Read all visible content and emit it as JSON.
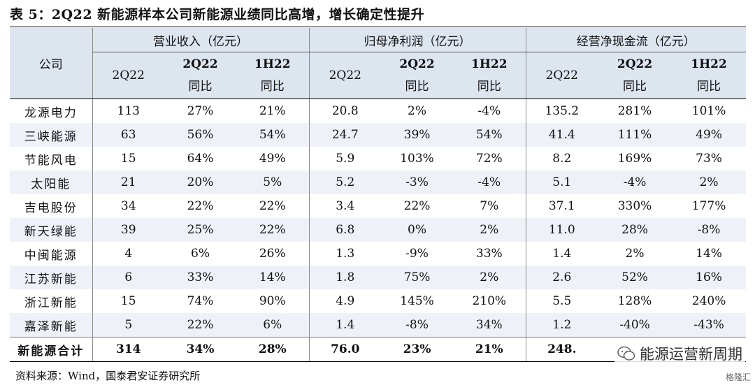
{
  "title": "表 5：2Q22 新能源样本公司新能源业绩同比高增，增长确定性提升",
  "header": {
    "company": "公司",
    "groups": [
      "营业收入（亿元）",
      "归母净利润（亿元）",
      "经营净现金流（亿元）"
    ],
    "sub_top": [
      "2Q22",
      "2Q22",
      "1H22"
    ],
    "sub_bottom": [
      "同比",
      "同比"
    ]
  },
  "rows": [
    [
      "龙源电力",
      "113",
      "27%",
      "21%",
      "20.8",
      "2%",
      "-4%",
      "135.2",
      "281%",
      "101%"
    ],
    [
      "三峡能源",
      "63",
      "56%",
      "54%",
      "24.7",
      "39%",
      "54%",
      "41.4",
      "111%",
      "49%"
    ],
    [
      "节能风电",
      "15",
      "64%",
      "49%",
      "5.9",
      "103%",
      "72%",
      "8.2",
      "169%",
      "73%"
    ],
    [
      "太阳能",
      "21",
      "20%",
      "5%",
      "5.2",
      "-3%",
      "-4%",
      "5.1",
      "-4%",
      "2%"
    ],
    [
      "吉电股份",
      "34",
      "22%",
      "22%",
      "3.4",
      "22%",
      "7%",
      "37.1",
      "330%",
      "177%"
    ],
    [
      "新天绿能",
      "39",
      "25%",
      "22%",
      "6.8",
      "0%",
      "2%",
      "11.0",
      "28%",
      "-8%"
    ],
    [
      "中闽能源",
      "4",
      "6%",
      "26%",
      "1.3",
      "-9%",
      "33%",
      "1.4",
      "2%",
      "14%"
    ],
    [
      "江苏新能",
      "6",
      "33%",
      "14%",
      "1.8",
      "75%",
      "2%",
      "2.6",
      "52%",
      "16%"
    ],
    [
      "浙江新能",
      "15",
      "74%",
      "90%",
      "4.9",
      "145%",
      "210%",
      "5.5",
      "128%",
      "240%"
    ],
    [
      "嘉泽新能",
      "5",
      "22%",
      "6%",
      "1.4",
      "-8%",
      "34%",
      "1.2",
      "-40%",
      "-43%"
    ]
  ],
  "total": [
    "新能源合计",
    "314",
    "34%",
    "28%",
    "76.0",
    "23%",
    "21%",
    "248.",
    "",
    ""
  ],
  "source": "资料来源：Wind，国泰君安证券研究所",
  "watermark": "能源运营新周期",
  "watermark2": "格隆汇",
  "colors": {
    "header_bg": "#dde5ef",
    "alt_row_bg": "#eef2f8"
  }
}
